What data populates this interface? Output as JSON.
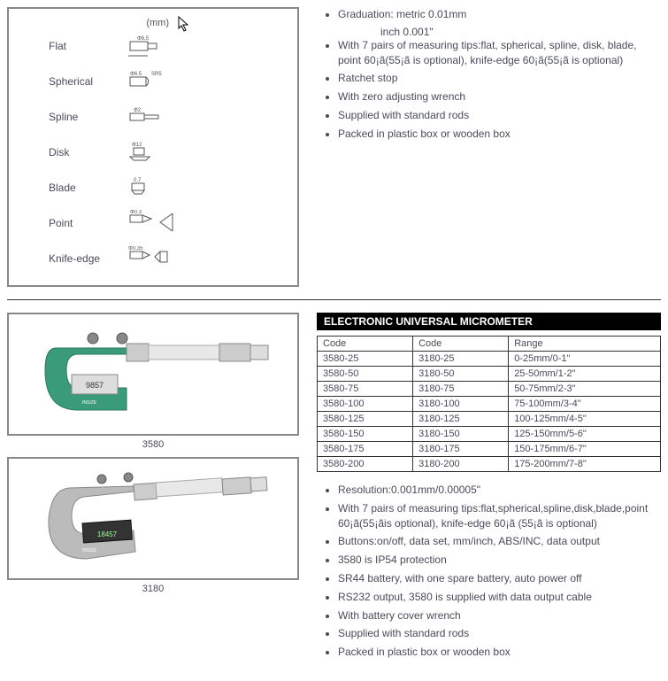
{
  "section1": {
    "mm_label": "(mm)",
    "tips": [
      {
        "label": "Flat",
        "dim": "Φ6.5"
      },
      {
        "label": "Spherical",
        "dim": "Φ6.5 SR5"
      },
      {
        "label": "Spline",
        "dim": "Φ2"
      },
      {
        "label": "Disk",
        "dim": "Φ12"
      },
      {
        "label": "Blade",
        "dim": "0.7"
      },
      {
        "label": "Point",
        "dim": "Φ0.3"
      },
      {
        "label": "Knife-edge",
        "dim": "Φ0.35"
      }
    ],
    "specs": [
      "Graduation: metric   0.01mm",
      "With 7 pairs of measuring tips:flat, spherical, spline, disk, blade, point 60¡ã(55¡ã is optional), knife-edge 60¡ã(55¡ã is optional)",
      "Ratchet stop",
      "With zero adjusting wrench",
      "Supplied with standard rods",
      "Packed in plastic box or wooden box"
    ],
    "inch_line": "inch  0.001\""
  },
  "section2": {
    "title": "ELECTRONIC UNIVERSAL MICROMETER",
    "captions": {
      "img1": "3580",
      "img2": "3180"
    },
    "table": {
      "headers": [
        "Code",
        "Code",
        "Range"
      ],
      "rows": [
        [
          "3580-25",
          "3180-25",
          "0-25mm/0-1\""
        ],
        [
          "3580-50",
          "3180-50",
          "25-50mm/1-2\""
        ],
        [
          "3580-75",
          "3180-75",
          "50-75mm/2-3\""
        ],
        [
          "3580-100",
          "3180-100",
          "75-100mm/3-4\""
        ],
        [
          "3580-125",
          "3180-125",
          "100-125mm/4-5\""
        ],
        [
          "3580-150",
          "3180-150",
          "125-150mm/5-6\""
        ],
        [
          "3580-175",
          "3180-175",
          "150-175mm/6-7\""
        ],
        [
          "3580-200",
          "3180-200",
          "175-200mm/7-8\""
        ]
      ]
    },
    "specs": [
      "Resolution:0.001mm/0.00005\"",
      "With 7 pairs of measuring tips:flat,spherical,spline,disk,blade,point 60¡ã(55¡ãis optional), knife-edge 60¡ã (55¡ã is optional)",
      "Buttons:on/off, data set, mm/inch, ABS/INC, data output",
      "3580 is IP54 protection",
      "SR44 battery, with one spare battery, auto power off",
      "RS232 output, 3580 is supplied with data output cable",
      "With battery cover wrench",
      "Supplied with standard rods",
      "Packed in plastic box or wooden box"
    ]
  },
  "colors": {
    "text": "#4a4a5a",
    "border": "#888",
    "tableBorder": "#333",
    "titleBg": "#000",
    "green": "#3a9b7a",
    "grey": "#888"
  }
}
